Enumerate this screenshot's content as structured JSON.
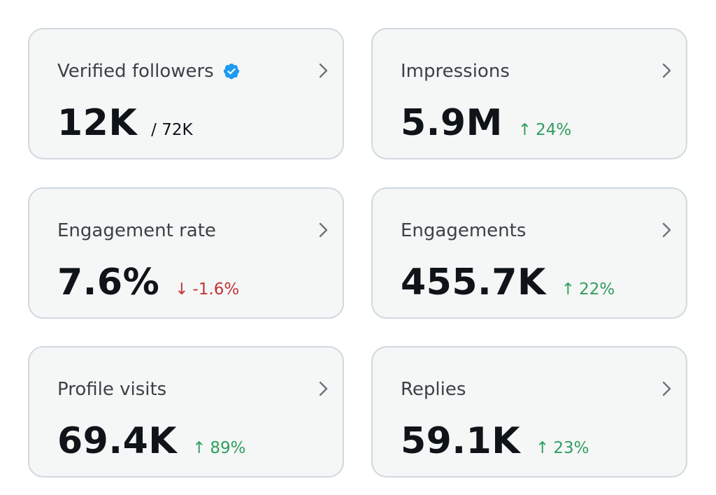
{
  "colors": {
    "card_bg": "#f5f6f6",
    "card_border": "#cfd9de",
    "title_text": "#3b4147",
    "value_text": "#0f1419",
    "positive": "#2f9e5e",
    "negative": "#c43535",
    "verified_badge": "#1d9bf0"
  },
  "cards": [
    {
      "title": "Verified followers",
      "value": "12K",
      "secondary": "/ 72K",
      "icon": "verified-badge-icon"
    },
    {
      "title": "Impressions",
      "value": "5.9M",
      "delta": {
        "direction": "up",
        "arrow": "↑",
        "text": "24%"
      }
    },
    {
      "title": "Engagement rate",
      "value": "7.6%",
      "delta": {
        "direction": "down",
        "arrow": "↓",
        "text": "-1.6%"
      }
    },
    {
      "title": "Engagements",
      "value": "455.7K",
      "delta": {
        "direction": "up",
        "arrow": "↑",
        "text": "22%"
      }
    },
    {
      "title": "Profile visits",
      "value": "69.4K",
      "delta": {
        "direction": "up",
        "arrow": "↑",
        "text": "89%"
      }
    },
    {
      "title": "Replies",
      "value": "59.1K",
      "delta": {
        "direction": "up",
        "arrow": "↑",
        "text": "23%"
      }
    }
  ]
}
